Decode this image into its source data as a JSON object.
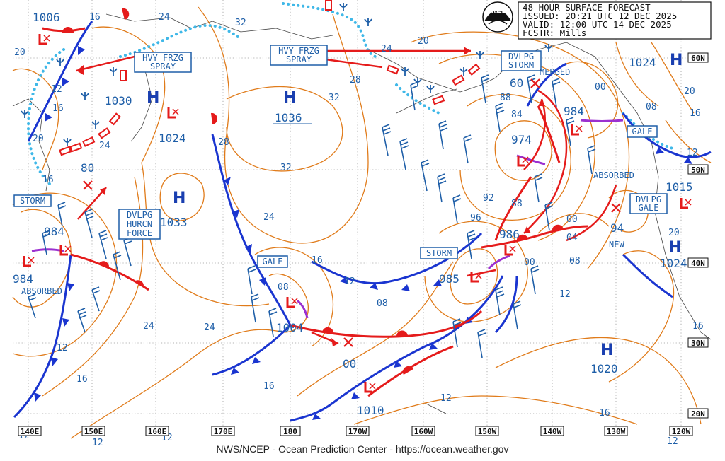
{
  "info_box": {
    "line1": "48-HOUR SURFACE FORECAST",
    "line2": "ISSUED: 20:21 UTC 12 DEC 2025",
    "line3": "VALID:  12:00 UTC 14 DEC 2025",
    "line4": "FCSTR:  Mills"
  },
  "logo_text": "NOAA",
  "credit": "NWS/NCEP - Ocean Prediction Center - https://ocean.weather.gov",
  "longitudes": [
    "140E",
    "150E",
    "160E",
    "170E",
    "180",
    "170W",
    "160W",
    "150W",
    "140W",
    "130W",
    "120W"
  ],
  "latitudes": [
    "60N",
    "50N",
    "40N",
    "30N",
    "20N"
  ],
  "highs": [
    {
      "label": "H",
      "pressure": "1030"
    },
    {
      "label": "H",
      "pressure": "1036"
    },
    {
      "label": "H",
      "pressure": "1033"
    },
    {
      "label": "H",
      "pressure": "1024"
    },
    {
      "label": "H",
      "pressure": "1024"
    },
    {
      "label": "H",
      "pressure": "1020"
    }
  ],
  "lows": [
    {
      "pressure": "1006"
    },
    {
      "pressure": "1024"
    },
    {
      "pressure": "80"
    },
    {
      "pressure": "984"
    },
    {
      "pressure": "984"
    },
    {
      "pressure": "1004"
    },
    {
      "pressure": "00"
    },
    {
      "pressure": "1010"
    },
    {
      "pressure": "986"
    },
    {
      "pressure": "985"
    },
    {
      "pressure": "974"
    },
    {
      "pressure": "984"
    },
    {
      "pressure": "60"
    },
    {
      "pressure": "94"
    },
    {
      "pressure": "1015"
    }
  ],
  "warning_boxes": [
    {
      "line1": "HVY FRZG",
      "line2": "SPRAY"
    },
    {
      "line1": "HVY FRZG",
      "line2": "SPRAY"
    },
    {
      "line1": "DVLPG",
      "line2": "STORM"
    },
    {
      "line1": "STORM"
    },
    {
      "line1": "DVLPG",
      "line2": "HURCN",
      "line3": "FORCE"
    },
    {
      "line1": "GALE"
    },
    {
      "line1": "STORM"
    },
    {
      "line1": "GALE"
    },
    {
      "line1": "DVLPG",
      "line2": "GALE"
    }
  ],
  "annotations": [
    "MERGED",
    "ABSORBED",
    "ABSORBED",
    "NEW"
  ],
  "isobar_labels": [
    "16",
    "24",
    "32",
    "20",
    "20",
    "12",
    "16",
    "24",
    "24",
    "28",
    "28",
    "32",
    "32",
    "24",
    "20",
    "16",
    "12",
    "08",
    "16",
    "24",
    "24",
    "12",
    "16",
    "12",
    "08",
    "00",
    "88",
    "84",
    "92",
    "96",
    "88",
    "00",
    "04",
    "08",
    "12",
    "00",
    "08",
    "16",
    "12",
    "20",
    "16",
    "12",
    "16",
    "12",
    "12",
    "12"
  ],
  "colors": {
    "isobar": "#e07b1a",
    "front_cold": "#1a35d0",
    "front_warm": "#e51b1b",
    "occluded": "#9b30d0",
    "ice": "#3fb8e8",
    "wind_barb": "#1f5fa8",
    "grid": "#9a9a9a"
  }
}
